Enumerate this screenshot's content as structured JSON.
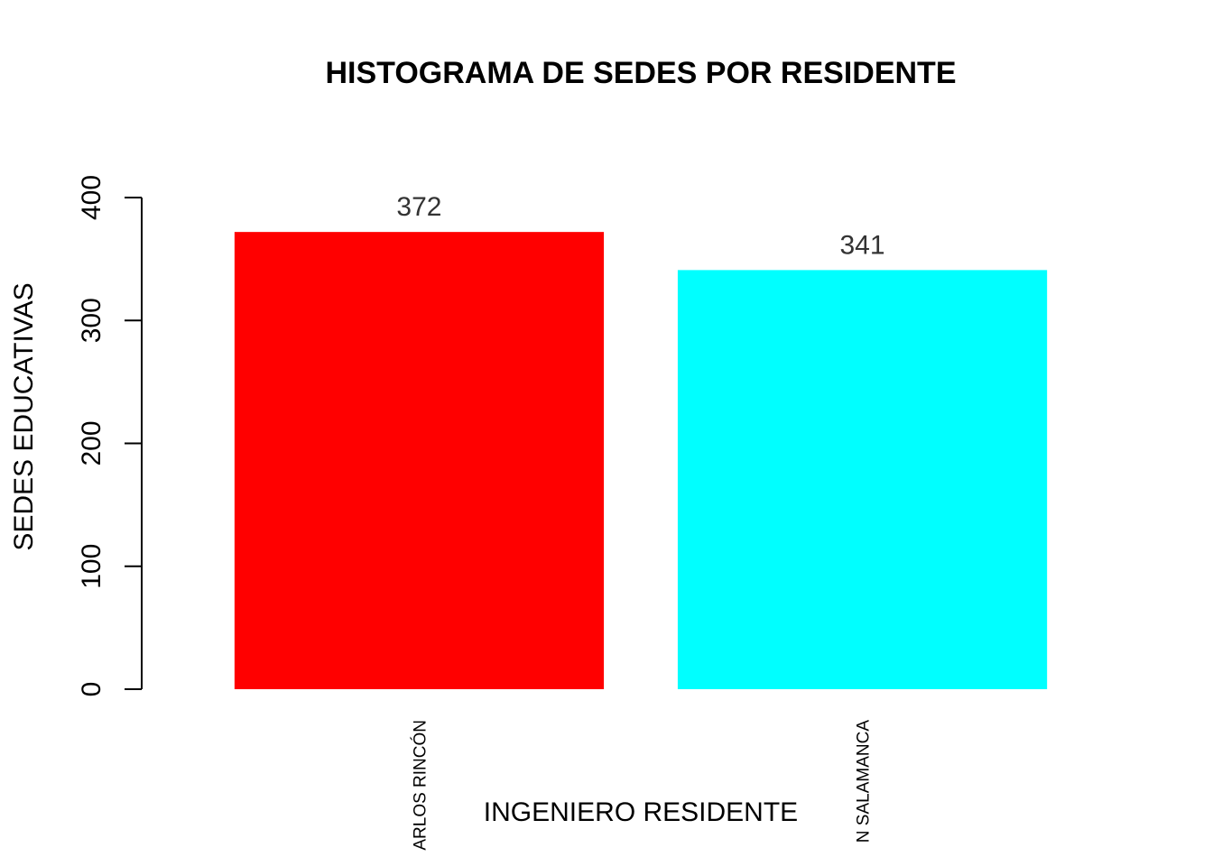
{
  "chart_data": {
    "type": "bar",
    "title": "HISTOGRAMA DE SEDES POR RESIDENTE",
    "xlabel": "INGENIERO RESIDENTE",
    "ylabel": "SEDES EDUCATIVAS",
    "categories": [
      "ARLOS RINCÓN",
      "N SALAMANCA"
    ],
    "values": [
      372,
      341
    ],
    "value_labels": [
      "372",
      "341"
    ],
    "colors": [
      "#ff0000",
      "#00ffff"
    ],
    "ylim": [
      0,
      400
    ],
    "yticks": [
      0,
      100,
      200,
      300,
      400
    ],
    "ytick_labels": [
      "0",
      "100",
      "200",
      "300",
      "400"
    ],
    "grid": false,
    "legend": "none"
  }
}
